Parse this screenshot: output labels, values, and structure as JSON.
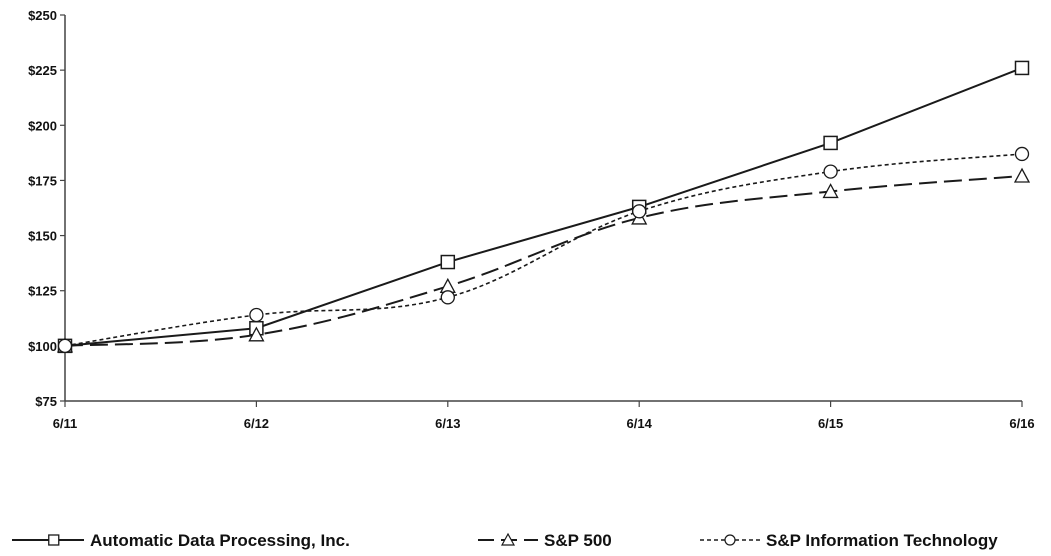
{
  "chart_data": {
    "type": "line",
    "title": "",
    "xlabel": "",
    "ylabel": "",
    "categories": [
      "6/11",
      "6/12",
      "6/13",
      "6/14",
      "6/15",
      "6/16"
    ],
    "y_ticks": [
      "$75",
      "$100",
      "$125",
      "$150",
      "$175",
      "$200",
      "$225",
      "$250"
    ],
    "ylim": [
      75,
      250
    ],
    "grid": false,
    "legend_position": "bottom",
    "series": [
      {
        "name": "Automatic Data Processing, Inc.",
        "style": "solid",
        "marker": "square",
        "values": [
          100,
          108,
          138,
          163,
          192,
          226
        ]
      },
      {
        "name": "S&P 500",
        "style": "dashed",
        "marker": "triangle",
        "values": [
          100,
          105,
          127,
          158,
          170,
          177
        ]
      },
      {
        "name": "S&P Information Technology",
        "style": "dotted",
        "marker": "circle",
        "values": [
          100,
          114,
          122,
          161,
          179,
          187
        ]
      }
    ],
    "colors": {
      "line": "#1a1a1a",
      "marker_fill": "#ffffff"
    }
  }
}
